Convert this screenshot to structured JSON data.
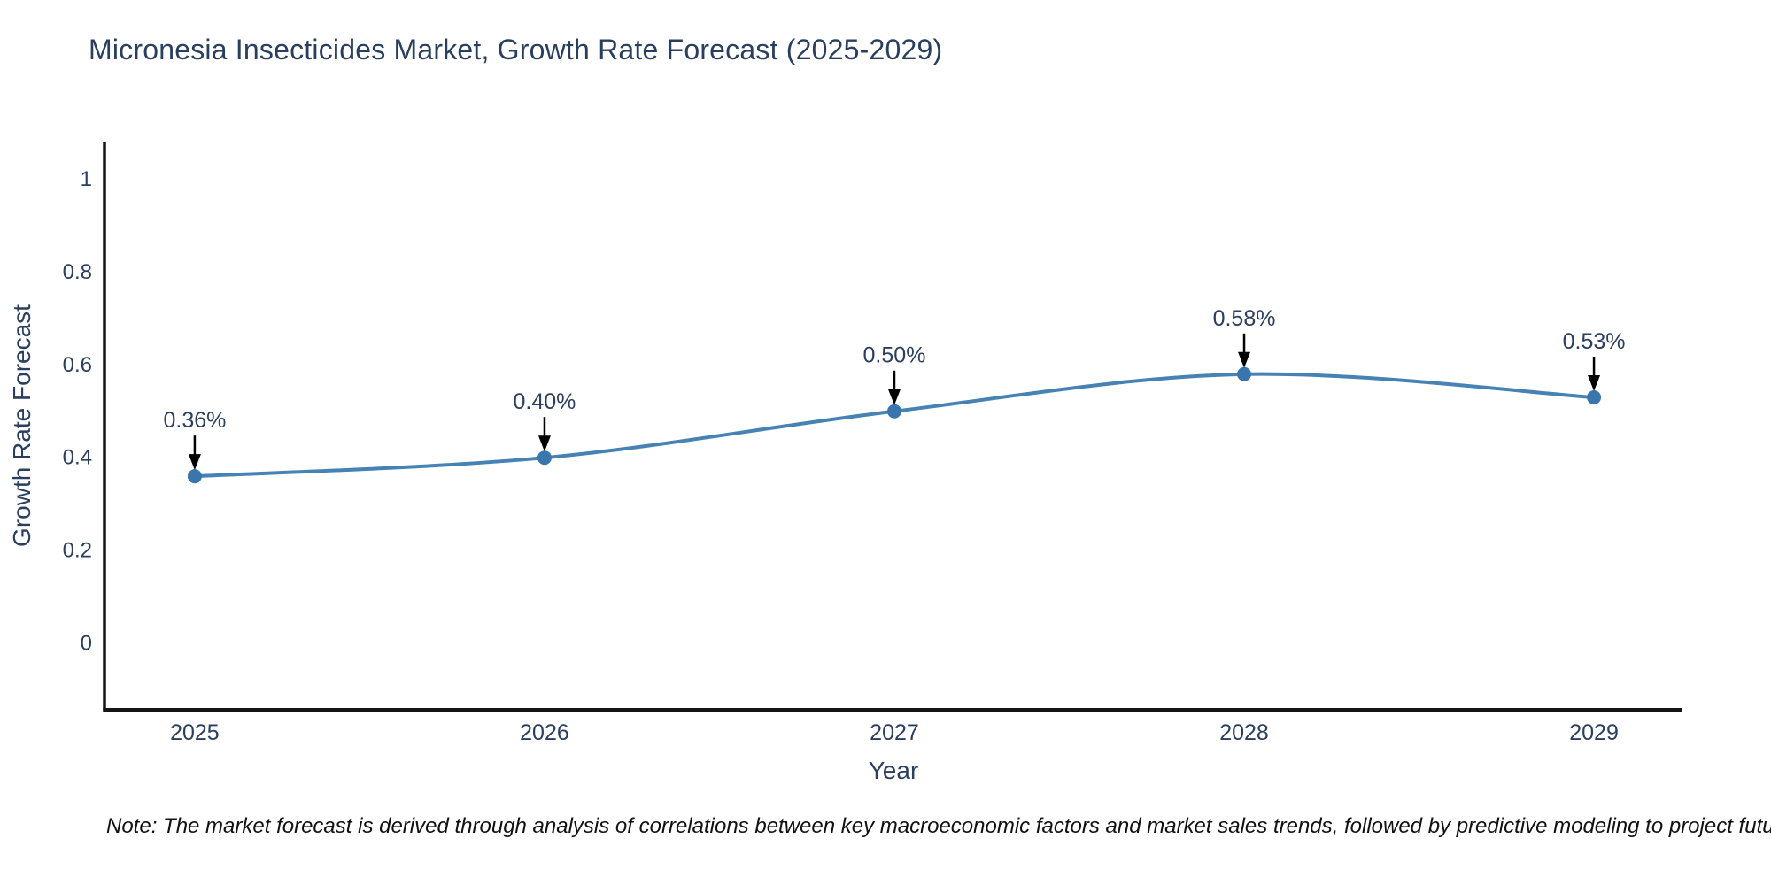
{
  "chart_data": {
    "type": "line",
    "title": "Micronesia Insecticides Market, Growth Rate Forecast (2025-2029)",
    "xlabel": "Year",
    "ylabel": "Growth Rate Forecast",
    "categories": [
      "2025",
      "2026",
      "2027",
      "2028",
      "2029"
    ],
    "x": [
      2025,
      2026,
      2027,
      2028,
      2029
    ],
    "values": [
      0.36,
      0.4,
      0.5,
      0.58,
      0.53
    ],
    "point_labels": [
      "0.36%",
      "0.40%",
      "0.50%",
      "0.58%",
      "0.53%"
    ],
    "y_tick_labels": [
      "0",
      "0.2",
      "0.4",
      "0.6",
      "0.8",
      "1"
    ],
    "y_tick_values": [
      0,
      0.2,
      0.4,
      0.6,
      0.8,
      1
    ],
    "xlim": [
      2024.742,
      2029.253
    ],
    "ylim": [
      -0.143,
      1.081
    ],
    "grid": false,
    "legend_position": "none",
    "line_color": "#4682b4",
    "marker_color": "#3a76ae",
    "axis_line_color": "#151515",
    "text_color": "#2a3f5f",
    "annotation_text_color": "#2a3f5f",
    "annotation_arrow_color": "#000000"
  },
  "note": "Note: The market forecast is derived through analysis of correlations between key macroeconomic factors and market sales trends, followed by predictive modeling to project future sales."
}
